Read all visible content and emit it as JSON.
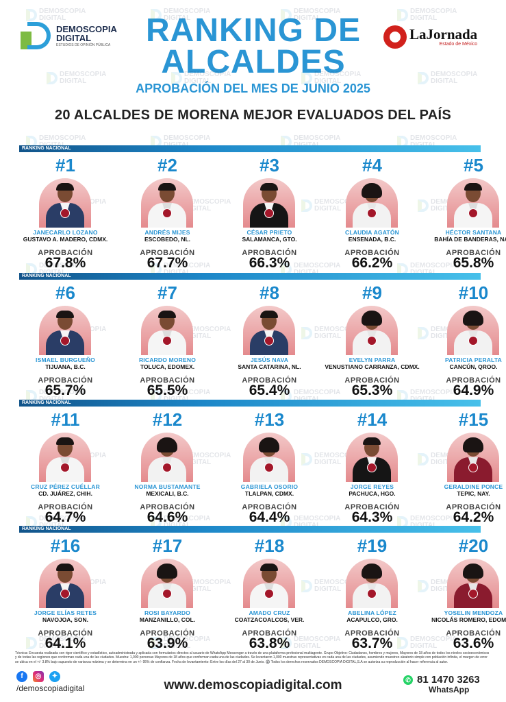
{
  "brand": {
    "left_logo_line1": "DEMOSCOPIA",
    "left_logo_line2": "DIGITAL",
    "left_logo_tagline": "ESTUDIOS DE OPINIÓN PÚBLICA",
    "right_logo_name": "LaJornada",
    "right_logo_sub": "Estado de México"
  },
  "header": {
    "title_line1": "RANKING DE",
    "title_line2": "ALCALDES",
    "subtitle": "APROBACIÓN DEL MES DE JUNIO 2025",
    "headline": "20 ALCALDES DE MORENA MEJOR EVALUADOS DEL PAÍS"
  },
  "section_label": "RANKING NACIONAL",
  "approval_label": "APROBACIÓN",
  "mayors": [
    {
      "rank": "#1",
      "name": "JANECARLO LOZANO",
      "location": "GUSTAVO A. MADERO, CDMX.",
      "approval": "67.8%"
    },
    {
      "rank": "#2",
      "name": "ANDRÉS MIJES",
      "location": "ESCOBEDO, NL.",
      "approval": "67.7%"
    },
    {
      "rank": "#3",
      "name": "CÉSAR PRIETO",
      "location": "SALAMANCA, GTO.",
      "approval": "66.3%"
    },
    {
      "rank": "#4",
      "name": "CLAUDIA AGATÓN",
      "location": "ENSENADA, B.C.",
      "approval": "66.2%"
    },
    {
      "rank": "#5",
      "name": "HÉCTOR SANTANA",
      "location": "BAHÍA DE BANDERAS, NAY.",
      "approval": "65.8%"
    },
    {
      "rank": "#6",
      "name": "ISMAEL BURGUEÑO",
      "location": "TIJUANA, B.C.",
      "approval": "65.7%"
    },
    {
      "rank": "#7",
      "name": "RICARDO MORENO",
      "location": "TOLUCA, EDOMEX.",
      "approval": "65.5%"
    },
    {
      "rank": "#8",
      "name": "JESÚS NAVA",
      "location": "SANTA CATARINA, NL.",
      "approval": "65.4%"
    },
    {
      "rank": "#9",
      "name": "EVELYN PARRA",
      "location": "VENUSTIANO CARRANZA, CDMX.",
      "approval": "65.3%"
    },
    {
      "rank": "#10",
      "name": "PATRICIA PERALTA",
      "location": "CANCÚN, QROO.",
      "approval": "64.9%"
    },
    {
      "rank": "#11",
      "name": "CRUZ PÉREZ CUÉLLAR",
      "location": "CD. JUÁREZ, CHIH.",
      "approval": "64.7%"
    },
    {
      "rank": "#12",
      "name": "NORMA BUSTAMANTE",
      "location": "MEXICALI, B.C.",
      "approval": "64.6%"
    },
    {
      "rank": "#13",
      "name": "GABRIELA OSORIO",
      "location": "TLALPAN, CDMX.",
      "approval": "64.4%"
    },
    {
      "rank": "#14",
      "name": "JORGE REYES",
      "location": "PACHUCA, HGO.",
      "approval": "64.3%"
    },
    {
      "rank": "#15",
      "name": "GERALDINE PONCE",
      "location": "TEPIC, NAY.",
      "approval": "64.2%"
    },
    {
      "rank": "#16",
      "name": "JORGE ELÍAS RETES",
      "location": "NAVOJOA, SON.",
      "approval": "64.1%"
    },
    {
      "rank": "#17",
      "name": "ROSI BAYARDO",
      "location": "MANZANILLO, COL.",
      "approval": "63.9%"
    },
    {
      "rank": "#18",
      "name": "AMADO CRUZ",
      "location": "COATZACOALCOS, VER.",
      "approval": "63.8%"
    },
    {
      "rank": "#19",
      "name": "ABELINA LÓPEZ",
      "location": "ACAPULCO, GRO.",
      "approval": "63.7%"
    },
    {
      "rank": "#20",
      "name": "YOSELIN MENDOZA",
      "location": "NICOLÁS ROMERO, EDOMEX.",
      "approval": "63.6%"
    }
  ],
  "footer": {
    "technical_note": "Técnica: Encuesta realizada con rigor científico y estadístico, autoadministrada y aplicada con formularios directos al usuario de WhatsApp Messenger a través de una plataforma profesional multiagente. Grupo Objetivo: Ciudadanos, hombres y mujeres, Mayores de 18 años de todos los niveles socioeconómicos y de todas las regiones que conforman cada una de las ciudades. Muestra: 1,000 personas Mayores de 18 años que conforman cada una de las ciudades. Se levantaron 1,000 muestras representativas en cada una de las ciudades, asumiendo muestreo aleatorio simple con población infinita, el margen de error se ubica en el +/- 3.8% bajo supuesto de varianza máxima y se determina en un +/- 95% de confianza. Fecha de levantamiento: Entre los días del 27 al 30 de Junio. ©️ Todos los derechos reservados DEMOSCOPIA DIGITAL,S.A se autoriza su reproducción al hacer referencia al autor.",
    "handle": "/demoscopiadigital",
    "website": "www.demoscopiadigital.com",
    "phone": "81 1470 3263",
    "whatsapp_label": "WhatsApp"
  }
}
